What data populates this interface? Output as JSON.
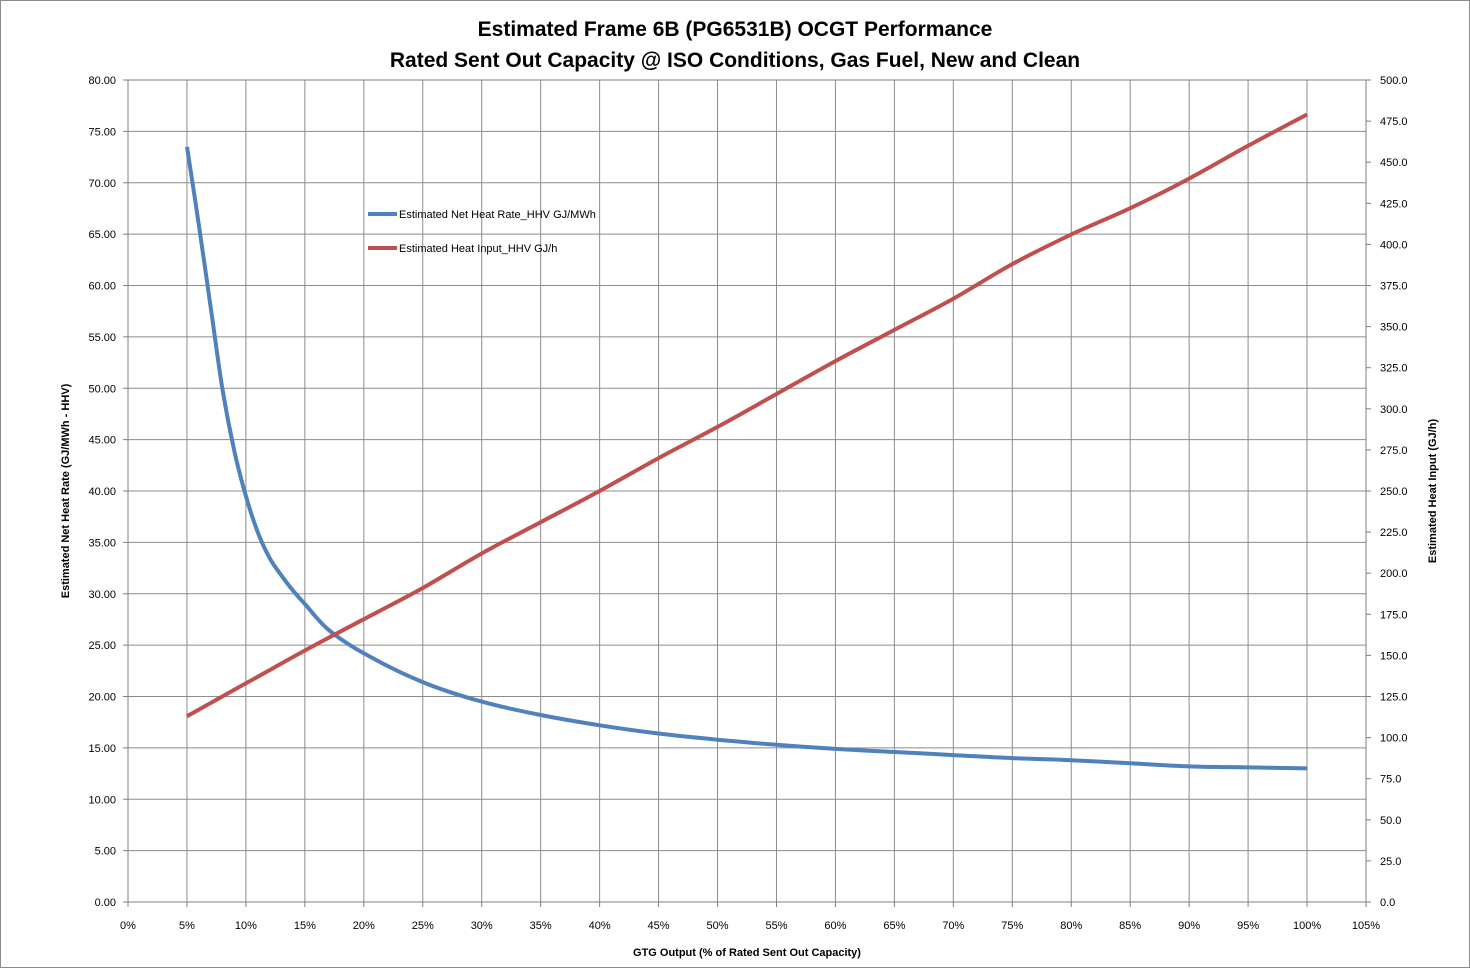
{
  "chart_data": {
    "type": "line",
    "title": "Estimated Frame 6B (PG6531B) OCGT Performance",
    "subtitle": "Rated Sent Out Capacity @ ISO Conditions, Gas Fuel, New and Clean",
    "xlabel": "GTG Output (% of Rated Sent Out Capacity)",
    "ylabel_left": "Estimated Net Heat Rate (GJ/MWh - HHV)",
    "ylabel_right": "Estimated Heat Input (GJ/h)",
    "xlim": [
      0,
      105
    ],
    "ylim_left": [
      0,
      80
    ],
    "ylim_right": [
      0,
      500
    ],
    "x_ticks": [
      "0%",
      "5%",
      "10%",
      "15%",
      "20%",
      "25%",
      "30%",
      "35%",
      "40%",
      "45%",
      "50%",
      "55%",
      "60%",
      "65%",
      "70%",
      "75%",
      "80%",
      "85%",
      "90%",
      "95%",
      "100%",
      "105%"
    ],
    "y_left_ticks": [
      "0.00",
      "5.00",
      "10.00",
      "15.00",
      "20.00",
      "25.00",
      "30.00",
      "35.00",
      "40.00",
      "45.00",
      "50.00",
      "55.00",
      "60.00",
      "65.00",
      "70.00",
      "75.00",
      "80.00"
    ],
    "y_right_ticks": [
      "0.0",
      "25.0",
      "50.0",
      "75.0",
      "100.0",
      "125.0",
      "150.0",
      "175.0",
      "200.0",
      "225.0",
      "250.0",
      "275.0",
      "300.0",
      "325.0",
      "350.0",
      "375.0",
      "400.0",
      "425.0",
      "450.0",
      "475.0",
      "500.0"
    ],
    "grid": true,
    "legend_position": "upper-left-inside",
    "series": [
      {
        "name": "Estimated Net Heat Rate_HHV GJ/MWh",
        "axis": "left",
        "color": "#4f81bd",
        "x": [
          5,
          6,
          7,
          8,
          9,
          10,
          11,
          12,
          13,
          14,
          15,
          17,
          20,
          25,
          30,
          35,
          40,
          45,
          50,
          55,
          60,
          65,
          70,
          75,
          80,
          85,
          90,
          95,
          100
        ],
        "values": [
          73.5,
          66,
          58,
          50,
          44,
          39.5,
          36,
          33.5,
          31.8,
          30.3,
          29,
          26.5,
          24.2,
          21.4,
          19.5,
          18.2,
          17.2,
          16.4,
          15.8,
          15.3,
          14.9,
          14.6,
          14.3,
          14.0,
          13.8,
          13.5,
          13.2,
          13.1,
          13.0
        ]
      },
      {
        "name": "Estimated Heat Input_HHV GJ/h",
        "axis": "right",
        "color": "#c0504d",
        "x": [
          5,
          10,
          15,
          20,
          25,
          30,
          35,
          40,
          45,
          50,
          55,
          60,
          65,
          70,
          75,
          80,
          85,
          90,
          95,
          100
        ],
        "values": [
          113,
          133,
          153,
          172,
          191,
          212,
          231,
          250,
          270,
          289,
          309,
          329,
          348,
          367,
          388,
          406,
          422,
          440,
          460,
          479
        ]
      }
    ]
  }
}
